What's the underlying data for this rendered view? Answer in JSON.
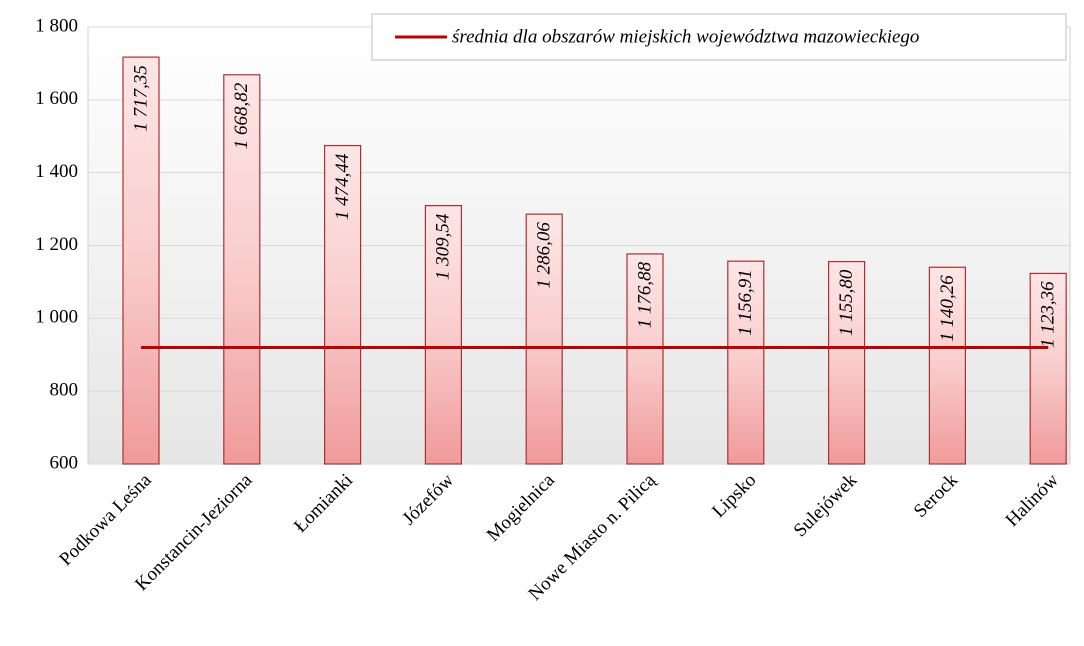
{
  "chart_data": {
    "type": "bar",
    "categories": [
      "Podkowa Leśna",
      "Konstancin-Jeziorna",
      "Łomianki",
      "Józefów",
      "Mogielnica",
      "Nowe Miasto n. Pilicą",
      "Lipsko",
      "Sulejówek",
      "Serock",
      "Halinów"
    ],
    "values": [
      1717.35,
      1668.82,
      1474.44,
      1309.54,
      1286.06,
      1176.88,
      1156.91,
      1155.8,
      1140.26,
      1123.36
    ],
    "value_labels": [
      "1 717,35",
      "1 668,82",
      "1 474,44",
      "1 309,54",
      "1 286,06",
      "1 176,88",
      "1 156,91",
      "1 155,80",
      "1 140,26",
      "1 123,36"
    ],
    "color": "#f4a0a0",
    "reference_line": {
      "name": "średnia dla obszarów miejskich województwa mazowieckiego",
      "value": 920,
      "color": "#c00000"
    },
    "ylim": [
      600,
      1800
    ],
    "yticks": [
      600,
      800,
      {
        "value": 1000,
        "label": "1 000"
      },
      {
        "value": 1200,
        "label": "1 200"
      },
      {
        "value": 1400,
        "label": "1 400"
      },
      {
        "value": 1600,
        "label": "1 600"
      },
      {
        "value": 1800,
        "label": "1 800"
      }
    ],
    "grid": true
  }
}
